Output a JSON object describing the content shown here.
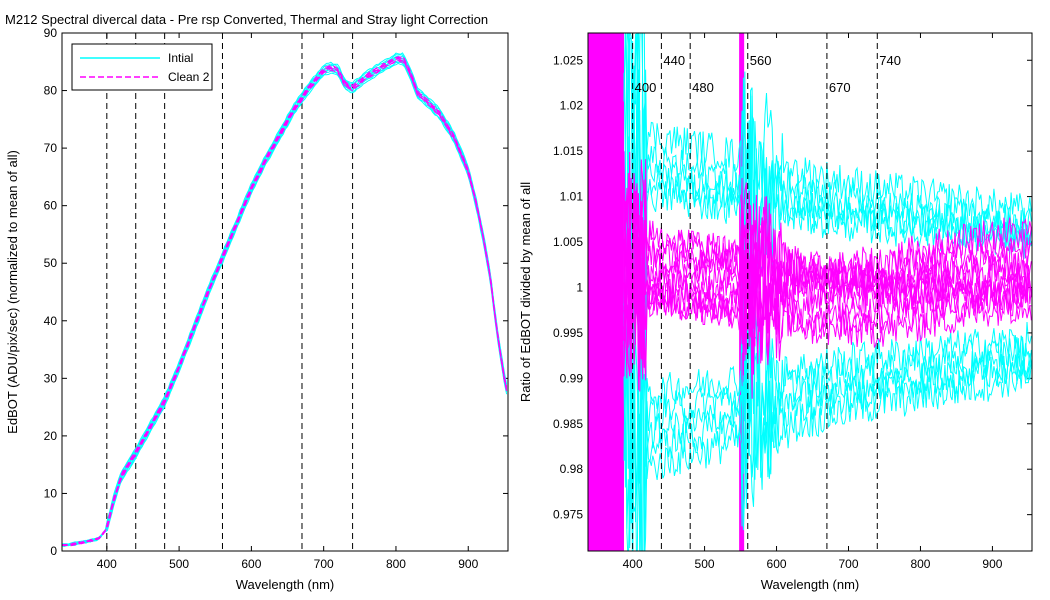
{
  "figure_title": "M212  Spectral divercal data - Pre rsp Converted, Thermal and Stray light Correction",
  "colors": {
    "initial": "#00ffff",
    "clean": "#ff00ff",
    "axes": "#000000",
    "marker_lines": "#000000"
  },
  "chart_data": [
    {
      "type": "line",
      "ylabel": "EdBOT (ADU/pix/sec) (normalized to mean of all)",
      "xlabel": "Wavelength (nm)",
      "xlim": [
        338,
        955
      ],
      "ylim": [
        0,
        90
      ],
      "xticks": [
        400,
        500,
        600,
        700,
        800,
        900
      ],
      "yticks": [
        0,
        10,
        20,
        30,
        40,
        50,
        60,
        70,
        80,
        90
      ],
      "grid": false,
      "legend": {
        "position": "top-left",
        "entries": [
          "Intial",
          "Clean 2"
        ]
      },
      "vertical_lines": [
        400,
        440,
        480,
        560,
        670,
        740
      ],
      "x": [
        338,
        350,
        370,
        390,
        400,
        410,
        420,
        440,
        460,
        480,
        500,
        520,
        540,
        560,
        580,
        600,
        620,
        640,
        660,
        680,
        700,
        710,
        720,
        730,
        740,
        750,
        760,
        780,
        800,
        810,
        820,
        830,
        840,
        860,
        880,
        900,
        910,
        920,
        930,
        940,
        950,
        955
      ],
      "series": [
        {
          "name": "Intial",
          "values": [
            1,
            1.1,
            1.6,
            2.2,
            4,
            9,
            13,
            17,
            21.5,
            26,
            32,
            38.5,
            45,
            51,
            57,
            63,
            68,
            72.5,
            77,
            80.5,
            83.5,
            84,
            83.5,
            81,
            80.5,
            81.5,
            82.5,
            84,
            85.5,
            85.5,
            83,
            79.5,
            78.5,
            76,
            72,
            66,
            61,
            55,
            48,
            38,
            30,
            27
          ],
          "offsets": [
            -0.9,
            0.9
          ]
        },
        {
          "name": "Clean 2",
          "values": [
            1,
            1.1,
            1.6,
            2.2,
            4,
            9,
            13,
            17,
            21.5,
            26,
            32,
            38.5,
            45,
            51,
            57,
            63,
            68,
            72.5,
            77,
            80.5,
            83.5,
            84,
            83.5,
            81,
            80.5,
            81.5,
            82.5,
            84,
            85.5,
            85.5,
            83,
            79.5,
            78.5,
            76,
            72,
            66,
            61,
            55,
            48,
            38,
            30,
            27
          ],
          "offsets": [
            -0.4,
            0.4
          ]
        }
      ]
    },
    {
      "type": "line",
      "ylabel": "Ratio of EdBOT divided by mean of all",
      "xlabel": "Wavelength (nm)",
      "xlim": [
        338,
        955
      ],
      "ylim": [
        0.971,
        1.028
      ],
      "xticks": [
        400,
        500,
        600,
        700,
        800,
        900
      ],
      "ytick_labels": [
        "0.975",
        "0.98",
        "0.985",
        "0.99",
        "0.995",
        "1",
        "1.005",
        "1.01",
        "1.015",
        "1.02",
        "1.025"
      ],
      "yticks": [
        0.975,
        0.98,
        0.985,
        0.99,
        0.995,
        1,
        1.005,
        1.01,
        1.015,
        1.02,
        1.025
      ],
      "grid": false,
      "vertical_lines": [
        400,
        440,
        480,
        560,
        670,
        740
      ],
      "annotations": [
        {
          "text": "400",
          "x": 400,
          "y": 1.0215
        },
        {
          "text": "440",
          "x": 440,
          "y": 1.0245
        },
        {
          "text": "480",
          "x": 480,
          "y": 1.0215
        },
        {
          "text": "560",
          "x": 560,
          "y": 1.0245
        },
        {
          "text": "670",
          "x": 670,
          "y": 1.0215
        },
        {
          "text": "740",
          "x": 740,
          "y": 1.0245
        }
      ],
      "x": [
        400,
        440,
        480,
        560,
        600,
        650,
        700,
        750,
        800,
        850,
        900,
        950
      ],
      "series": [
        {
          "name": "Intial",
          "offsets": [
            -0.0135,
            -0.012,
            -0.011,
            -0.0095,
            -0.008,
            0.007,
            0.008,
            0.0085,
            0.0095,
            0.0115
          ]
        },
        {
          "name": "Clean 2",
          "offsets": [
            -0.004,
            -0.003,
            -0.002,
            -0.001,
            0,
            0.001,
            0.002,
            0.003,
            0.004,
            0.005
          ]
        }
      ]
    }
  ]
}
